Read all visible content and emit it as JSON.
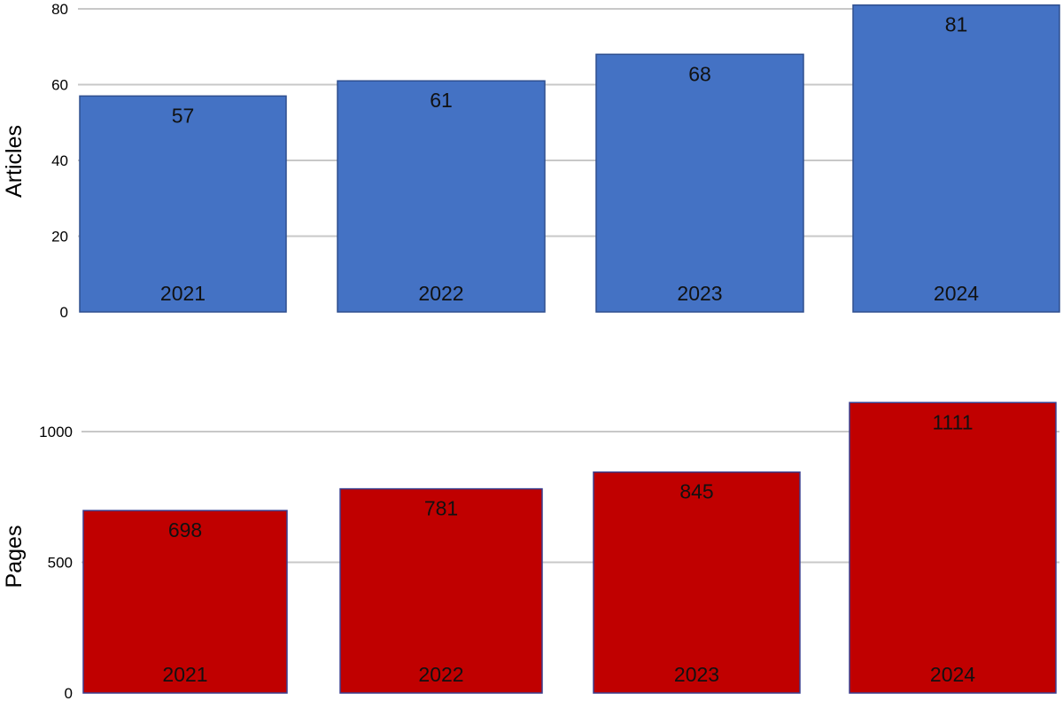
{
  "chart_data": [
    {
      "type": "bar",
      "categories": [
        "2021",
        "2022",
        "2023",
        "2024"
      ],
      "values": [
        57,
        61,
        68,
        81
      ],
      "title": "",
      "xlabel": "",
      "ylabel": "Articles",
      "ylim": [
        0,
        80
      ],
      "yticks": [
        "0",
        "20",
        "40",
        "60",
        "80"
      ],
      "color": "#4472c4",
      "edge_color": "#2f4f8f",
      "grid": true
    },
    {
      "type": "bar",
      "categories": [
        "2021",
        "2022",
        "2023",
        "2024"
      ],
      "values": [
        698,
        781,
        845,
        1111
      ],
      "title": "",
      "xlabel": "",
      "ylabel": "Pages",
      "ylim": [
        0,
        1000
      ],
      "yticks": [
        "0",
        "500",
        "1000"
      ],
      "color": "#c00000",
      "edge_color": "#3a3f8f",
      "grid": true
    }
  ]
}
